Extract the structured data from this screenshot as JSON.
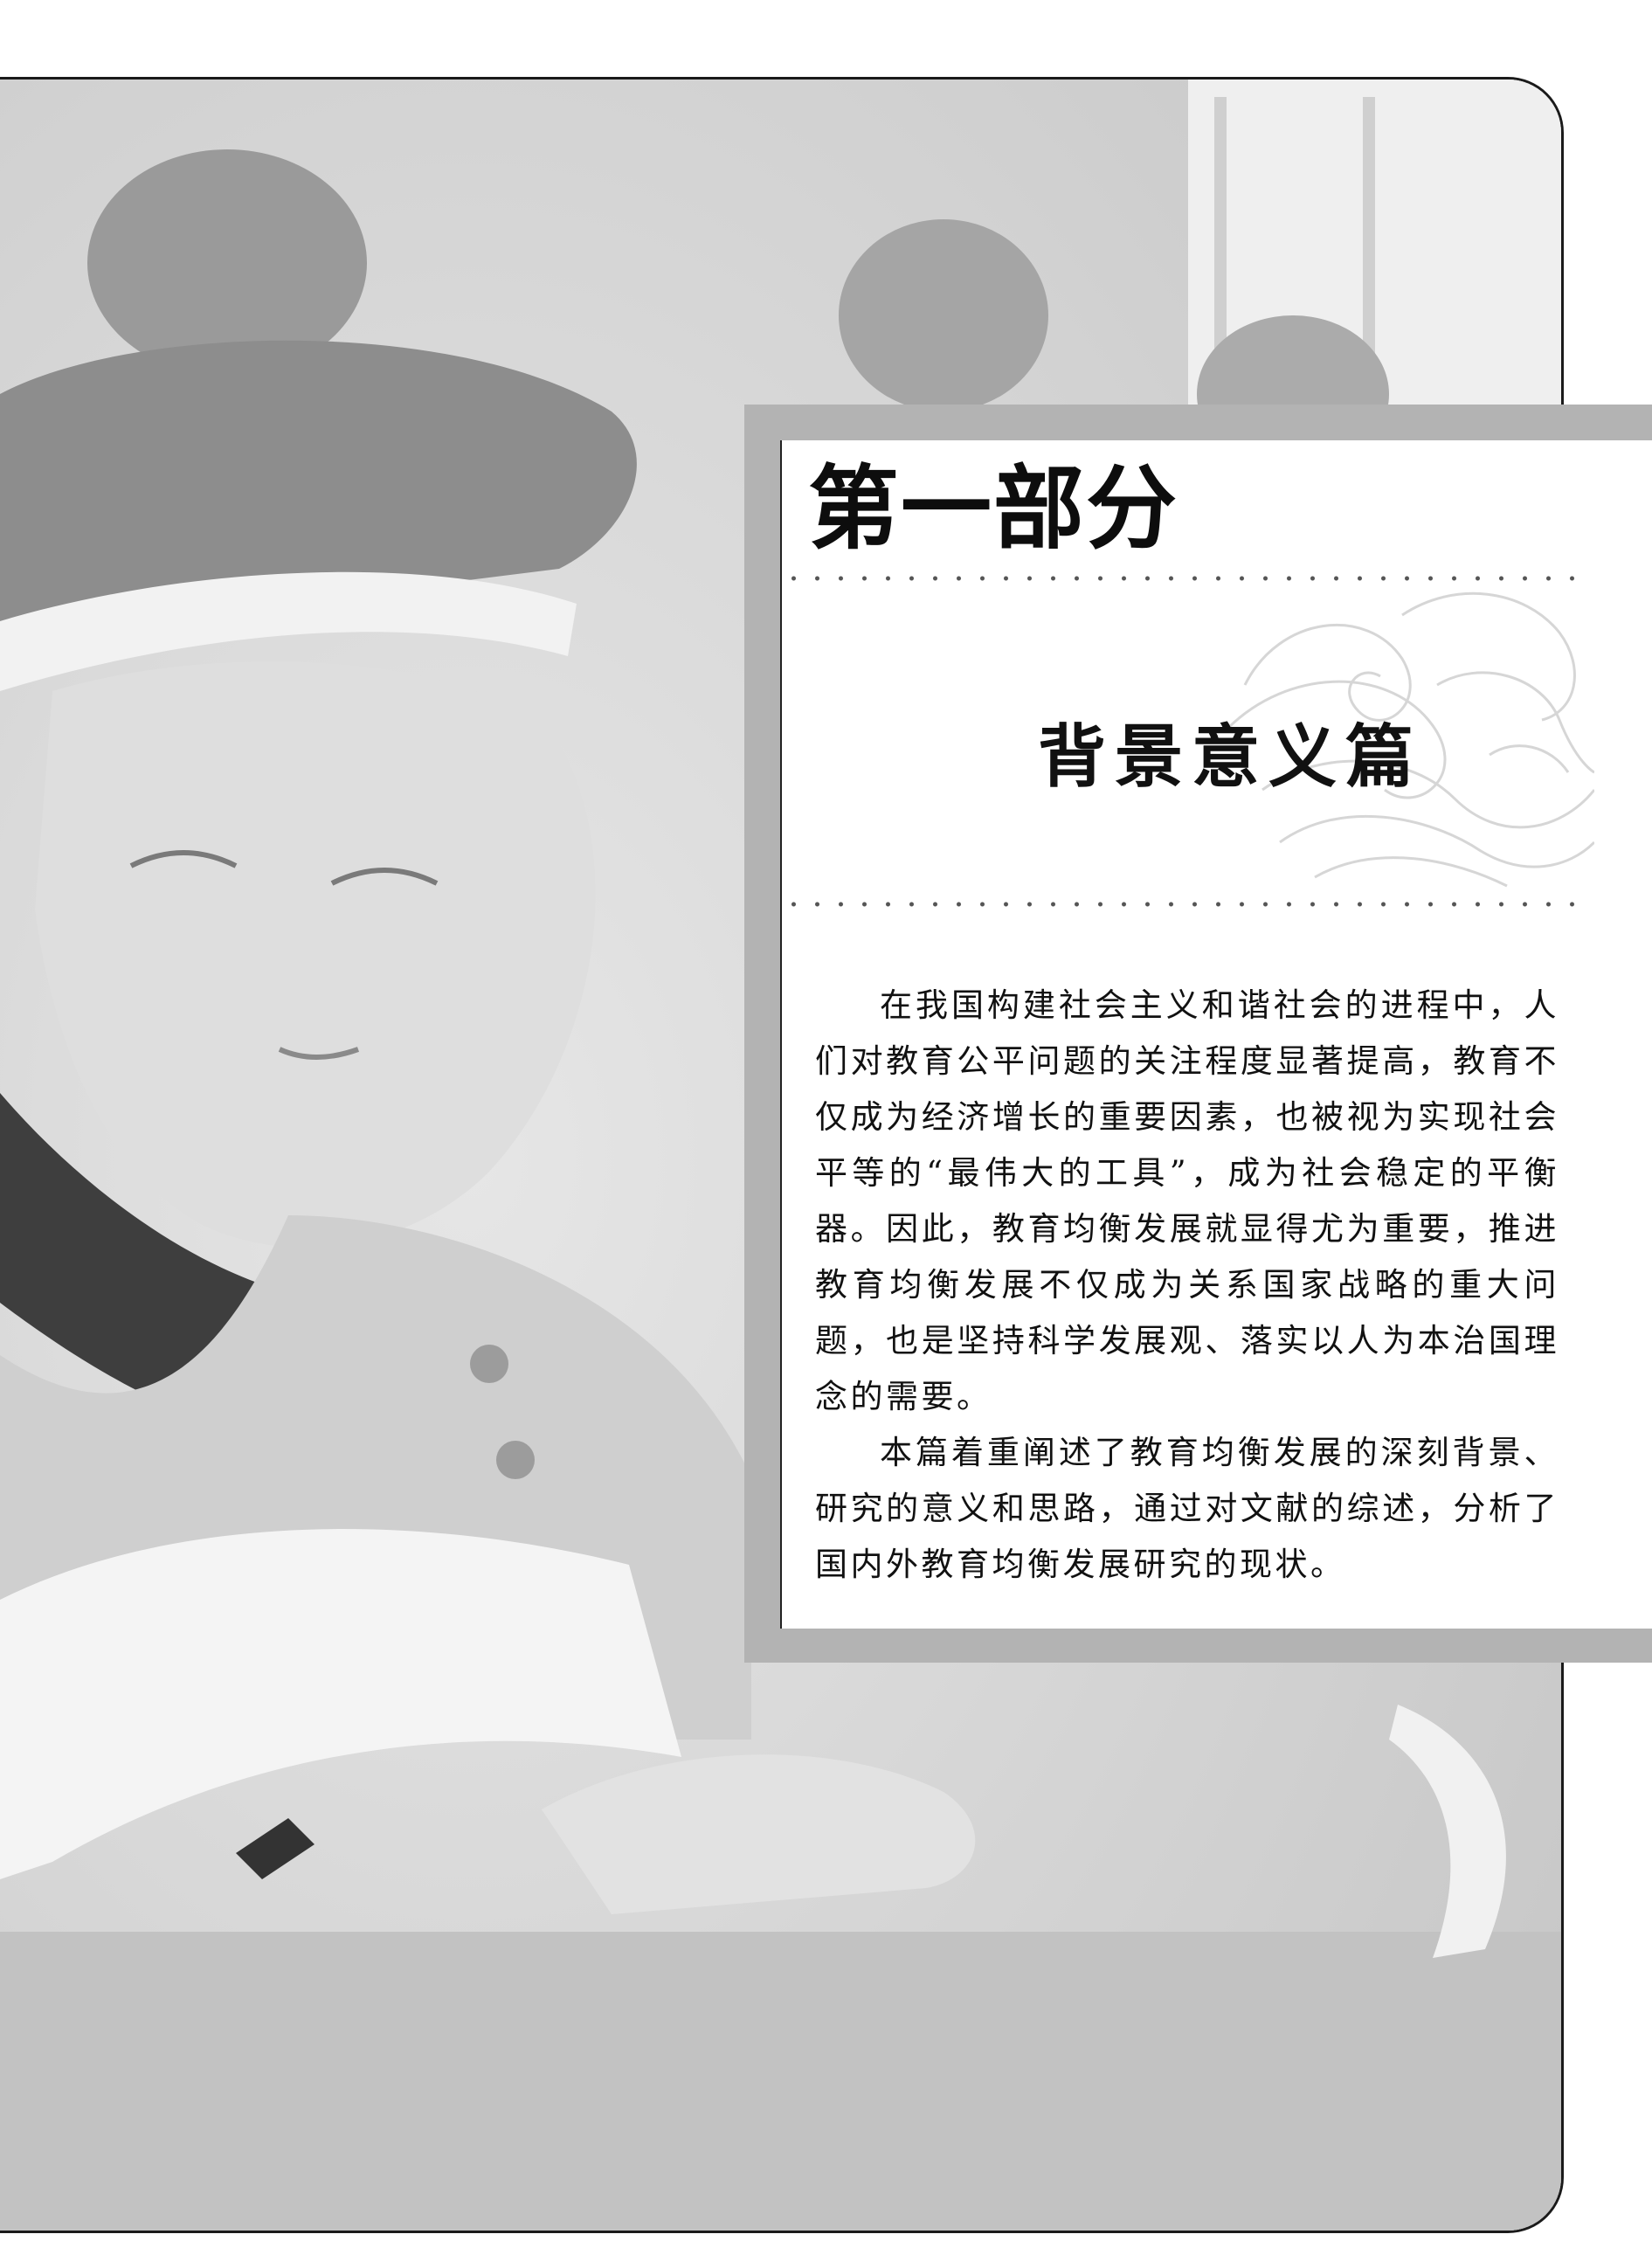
{
  "part_title": "第一部分",
  "section_title": "背景意义篇",
  "paragraphs": [
    "在我国构建社会主义和谐社会的进程中，人们对教育公平问题的关注程度显著提高，教育不仅成为经济增长的重要因素，也被视为实现社会平等的“最伟大的工具”，成为社会稳定的平衡器。因此，教育均衡发展就显得尤为重要，推进教育均衡发展不仅成为关系国家战略的重大问题，也是坚持科学发展观、落实以人为本治国理念的需要。",
    "本篇着重阐述了教育均衡发展的深刻背景、研究的意义和思路，通过对文献的综述，分析了国内外教育均衡发展研究的现状。"
  ],
  "colors": {
    "frame_gray": "#b3b3b3",
    "photo_base": "#d8d8d8",
    "text": "#111111"
  },
  "icons": {
    "wave_pattern": "wave-pattern-icon"
  }
}
